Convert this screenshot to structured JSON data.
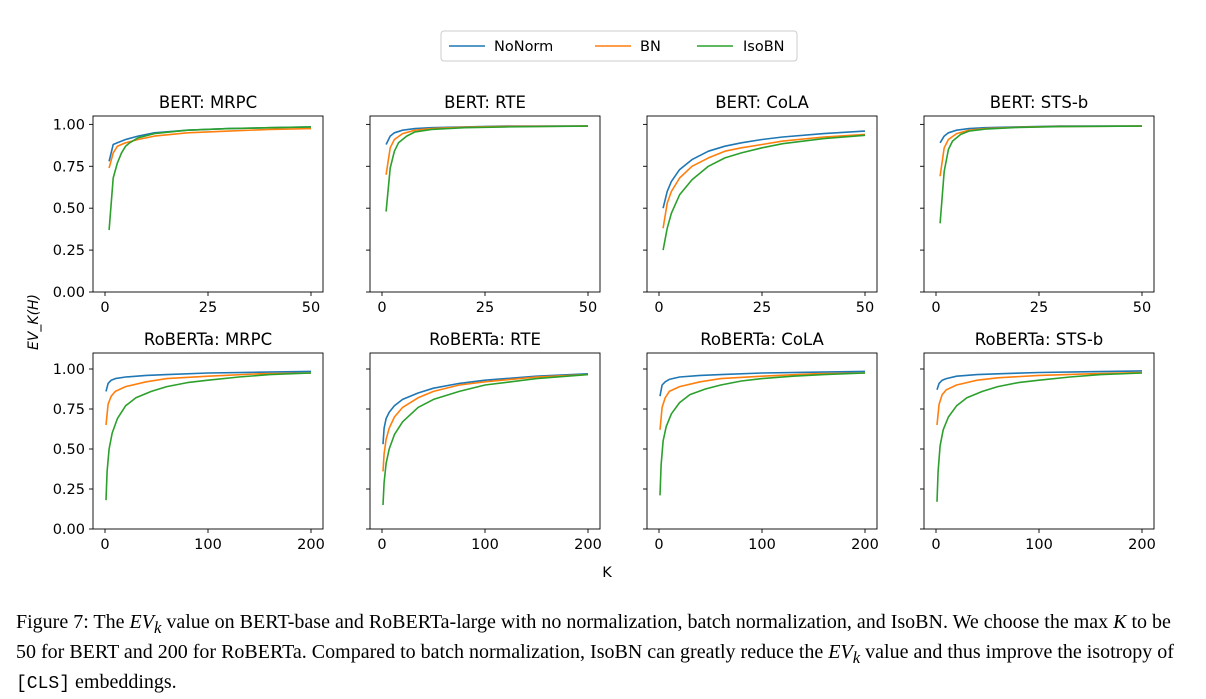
{
  "chart_data": {
    "type": "line",
    "legend": {
      "placement": "top-center",
      "entries": [
        {
          "name": "NoNorm",
          "color": "#1f77b4"
        },
        {
          "name": "BN",
          "color": "#ff7f0e"
        },
        {
          "name": "IsoBN",
          "color": "#2ca02c"
        }
      ]
    },
    "ylabel": "EV_K(H)",
    "xlabel": "K",
    "grid": false,
    "panels": [
      {
        "title": "BERT: MRPC",
        "xlim": [
          0,
          50
        ],
        "ylim": [
          0,
          1.05
        ],
        "xticks": [
          0,
          25,
          50
        ],
        "xtick_labels": [
          "0",
          "25",
          "50"
        ],
        "yticks": [
          0,
          0.25,
          0.5,
          0.75,
          1.0
        ],
        "ytick_labels": [
          "0.00",
          "0.25",
          "0.50",
          "0.75",
          "1.00"
        ],
        "series": [
          {
            "name": "NoNorm",
            "x": [
              1,
              2,
              3,
              5,
              8,
              12,
              20,
              30,
              40,
              50
            ],
            "y": [
              0.78,
              0.88,
              0.89,
              0.91,
              0.93,
              0.95,
              0.965,
              0.975,
              0.98,
              0.985
            ]
          },
          {
            "name": "BN",
            "x": [
              1,
              2,
              3,
              5,
              8,
              12,
              20,
              30,
              40,
              50
            ],
            "y": [
              0.74,
              0.83,
              0.87,
              0.89,
              0.91,
              0.93,
              0.95,
              0.96,
              0.97,
              0.975
            ]
          },
          {
            "name": "IsoBN",
            "x": [
              1,
              2,
              3,
              4,
              5,
              6,
              8,
              12,
              20,
              30,
              40,
              50
            ],
            "y": [
              0.37,
              0.68,
              0.77,
              0.83,
              0.87,
              0.89,
              0.92,
              0.945,
              0.965,
              0.975,
              0.98,
              0.985
            ]
          }
        ]
      },
      {
        "title": "BERT: RTE",
        "xlim": [
          0,
          50
        ],
        "ylim": [
          0,
          1.05
        ],
        "xticks": [
          0,
          25,
          50
        ],
        "xtick_labels": [
          "0",
          "25",
          "50"
        ],
        "yticks": [
          0,
          0.25,
          0.5,
          0.75,
          1.0
        ],
        "series": [
          {
            "name": "NoNorm",
            "x": [
              1,
              2,
              3,
              5,
              8,
              12,
              20,
              30,
              50
            ],
            "y": [
              0.88,
              0.93,
              0.95,
              0.965,
              0.975,
              0.98,
              0.985,
              0.99,
              0.99
            ]
          },
          {
            "name": "BN",
            "x": [
              1,
              2,
              3,
              5,
              8,
              12,
              20,
              30,
              50
            ],
            "y": [
              0.7,
              0.86,
              0.91,
              0.945,
              0.965,
              0.975,
              0.983,
              0.988,
              0.99
            ]
          },
          {
            "name": "IsoBN",
            "x": [
              1,
              2,
              3,
              4,
              6,
              8,
              12,
              20,
              30,
              50
            ],
            "y": [
              0.48,
              0.74,
              0.84,
              0.89,
              0.93,
              0.955,
              0.97,
              0.98,
              0.985,
              0.99
            ]
          }
        ]
      },
      {
        "title": "BERT: CoLA",
        "xlim": [
          0,
          50
        ],
        "ylim": [
          0,
          1.05
        ],
        "xticks": [
          0,
          25,
          50
        ],
        "xtick_labels": [
          "0",
          "25",
          "50"
        ],
        "yticks": [
          0,
          0.25,
          0.5,
          0.75,
          1.0
        ],
        "series": [
          {
            "name": "NoNorm",
            "x": [
              1,
              2,
              3,
              5,
              8,
              12,
              16,
              20,
              25,
              30,
              40,
              50
            ],
            "y": [
              0.5,
              0.6,
              0.66,
              0.73,
              0.79,
              0.84,
              0.87,
              0.89,
              0.91,
              0.925,
              0.945,
              0.96
            ]
          },
          {
            "name": "BN",
            "x": [
              1,
              2,
              3,
              5,
              8,
              12,
              16,
              20,
              25,
              30,
              40,
              50
            ],
            "y": [
              0.38,
              0.53,
              0.6,
              0.68,
              0.75,
              0.8,
              0.84,
              0.86,
              0.88,
              0.9,
              0.925,
              0.94
            ]
          },
          {
            "name": "IsoBN",
            "x": [
              1,
              2,
              3,
              5,
              8,
              12,
              16,
              20,
              25,
              30,
              40,
              50
            ],
            "y": [
              0.25,
              0.38,
              0.47,
              0.58,
              0.67,
              0.75,
              0.8,
              0.83,
              0.86,
              0.885,
              0.915,
              0.935
            ]
          }
        ]
      },
      {
        "title": "BERT: STS-b",
        "xlim": [
          0,
          50
        ],
        "ylim": [
          0,
          1.05
        ],
        "xticks": [
          0,
          25,
          50
        ],
        "xtick_labels": [
          "0",
          "25",
          "50"
        ],
        "yticks": [
          0,
          0.25,
          0.5,
          0.75,
          1.0
        ],
        "series": [
          {
            "name": "NoNorm",
            "x": [
              1,
              2,
              3,
              5,
              8,
              12,
              20,
              30,
              50
            ],
            "y": [
              0.89,
              0.93,
              0.95,
              0.965,
              0.975,
              0.98,
              0.985,
              0.99,
              0.99
            ]
          },
          {
            "name": "BN",
            "x": [
              1,
              2,
              3,
              5,
              8,
              12,
              20,
              30,
              50
            ],
            "y": [
              0.69,
              0.86,
              0.91,
              0.945,
              0.965,
              0.975,
              0.983,
              0.988,
              0.99
            ]
          },
          {
            "name": "IsoBN",
            "x": [
              1,
              2,
              3,
              4,
              6,
              8,
              12,
              20,
              30,
              50
            ],
            "y": [
              0.41,
              0.72,
              0.85,
              0.9,
              0.94,
              0.96,
              0.972,
              0.982,
              0.987,
              0.99
            ]
          }
        ]
      },
      {
        "title": "RoBERTa: MRPC",
        "xlim": [
          0,
          200
        ],
        "ylim": [
          0,
          1.1
        ],
        "xticks": [
          0,
          100,
          200
        ],
        "xtick_labels": [
          "0",
          "100",
          "200"
        ],
        "yticks": [
          0,
          0.25,
          0.5,
          0.75,
          1.0
        ],
        "ytick_labels": [
          "0.00",
          "0.25",
          "0.50",
          "0.75",
          "1.00"
        ],
        "series": [
          {
            "name": "NoNorm",
            "x": [
              1,
              3,
              6,
              10,
              20,
              40,
              60,
              100,
              150,
              200
            ],
            "y": [
              0.86,
              0.91,
              0.93,
              0.94,
              0.95,
              0.96,
              0.965,
              0.975,
              0.98,
              0.985
            ]
          },
          {
            "name": "BN",
            "x": [
              1,
              3,
              6,
              10,
              20,
              40,
              60,
              100,
              150,
              200
            ],
            "y": [
              0.65,
              0.78,
              0.83,
              0.86,
              0.89,
              0.92,
              0.94,
              0.955,
              0.97,
              0.975
            ]
          },
          {
            "name": "IsoBN",
            "x": [
              1,
              2,
              4,
              7,
              12,
              20,
              30,
              45,
              60,
              80,
              100,
              130,
              160,
              200
            ],
            "y": [
              0.18,
              0.36,
              0.5,
              0.6,
              0.69,
              0.77,
              0.82,
              0.86,
              0.89,
              0.915,
              0.93,
              0.95,
              0.965,
              0.975
            ]
          }
        ]
      },
      {
        "title": "RoBERTa: RTE",
        "xlim": [
          0,
          200
        ],
        "ylim": [
          0,
          1.1
        ],
        "xticks": [
          0,
          100,
          200
        ],
        "xtick_labels": [
          "0",
          "100",
          "200"
        ],
        "yticks": [
          0,
          0.25,
          0.5,
          0.75,
          1.0
        ],
        "series": [
          {
            "name": "NoNorm",
            "x": [
              1,
              2,
              4,
              7,
              12,
              20,
              35,
              50,
              75,
              100,
              150,
              200
            ],
            "y": [
              0.53,
              0.63,
              0.69,
              0.73,
              0.77,
              0.81,
              0.85,
              0.88,
              0.91,
              0.93,
              0.955,
              0.97
            ]
          },
          {
            "name": "BN",
            "x": [
              1,
              2,
              4,
              7,
              12,
              20,
              35,
              50,
              75,
              100,
              150,
              200
            ],
            "y": [
              0.36,
              0.47,
              0.56,
              0.63,
              0.7,
              0.76,
              0.82,
              0.86,
              0.9,
              0.92,
              0.95,
              0.965
            ]
          },
          {
            "name": "IsoBN",
            "x": [
              1,
              2,
              4,
              7,
              12,
              20,
              35,
              50,
              75,
              100,
              150,
              200
            ],
            "y": [
              0.15,
              0.29,
              0.41,
              0.5,
              0.59,
              0.67,
              0.76,
              0.81,
              0.86,
              0.9,
              0.94,
              0.965
            ]
          }
        ]
      },
      {
        "title": "RoBERTa: CoLA",
        "xlim": [
          0,
          200
        ],
        "ylim": [
          0,
          1.1
        ],
        "xticks": [
          0,
          100,
          200
        ],
        "xtick_labels": [
          "0",
          "100",
          "200"
        ],
        "yticks": [
          0,
          0.25,
          0.5,
          0.75,
          1.0
        ],
        "series": [
          {
            "name": "NoNorm",
            "x": [
              1,
              3,
              6,
              10,
              20,
              40,
              60,
              100,
              150,
              200
            ],
            "y": [
              0.83,
              0.9,
              0.92,
              0.935,
              0.95,
              0.96,
              0.965,
              0.975,
              0.98,
              0.985
            ]
          },
          {
            "name": "BN",
            "x": [
              1,
              3,
              6,
              10,
              20,
              40,
              60,
              100,
              150,
              200
            ],
            "y": [
              0.62,
              0.76,
              0.82,
              0.86,
              0.89,
              0.92,
              0.94,
              0.955,
              0.97,
              0.975
            ]
          },
          {
            "name": "IsoBN",
            "x": [
              1,
              2,
              4,
              7,
              12,
              20,
              30,
              45,
              60,
              80,
              100,
              130,
              160,
              200
            ],
            "y": [
              0.21,
              0.4,
              0.55,
              0.64,
              0.72,
              0.79,
              0.84,
              0.875,
              0.9,
              0.925,
              0.94,
              0.955,
              0.965,
              0.975
            ]
          }
        ]
      },
      {
        "title": "RoBERTa: STS-b",
        "xlim": [
          0,
          200
        ],
        "ylim": [
          0,
          1.1
        ],
        "xticks": [
          0,
          100,
          200
        ],
        "xtick_labels": [
          "0",
          "100",
          "200"
        ],
        "yticks": [
          0,
          0.25,
          0.5,
          0.75,
          1.0
        ],
        "series": [
          {
            "name": "NoNorm",
            "x": [
              1,
              3,
              6,
              10,
              20,
              40,
              60,
              100,
              150,
              200
            ],
            "y": [
              0.87,
              0.91,
              0.93,
              0.94,
              0.955,
              0.965,
              0.97,
              0.978,
              0.983,
              0.988
            ]
          },
          {
            "name": "BN",
            "x": [
              1,
              3,
              6,
              10,
              20,
              40,
              60,
              100,
              150,
              200
            ],
            "y": [
              0.65,
              0.78,
              0.84,
              0.87,
              0.9,
              0.93,
              0.945,
              0.96,
              0.97,
              0.978
            ]
          },
          {
            "name": "IsoBN",
            "x": [
              1,
              2,
              4,
              7,
              12,
              20,
              30,
              45,
              60,
              80,
              100,
              130,
              160,
              200
            ],
            "y": [
              0.17,
              0.36,
              0.52,
              0.62,
              0.7,
              0.77,
              0.82,
              0.86,
              0.89,
              0.915,
              0.93,
              0.95,
              0.965,
              0.975
            ]
          }
        ]
      }
    ]
  },
  "caption": {
    "label": "Figure 7: The",
    "ev_main": "EV",
    "ev_sub": "k",
    "t1": " value on BERT-base and RoBERTa-large with no normalization, batch normalization, and IsoBN. We choose the max ",
    "k": "K",
    "t2": " to be 50 for BERT and 200 for RoBERTa. Compared to batch normalization, IsoBN can greatly reduce the ",
    "t3": " value and thus improve the isotropy of ",
    "cls": "[CLS]",
    "t4": " embeddings."
  }
}
